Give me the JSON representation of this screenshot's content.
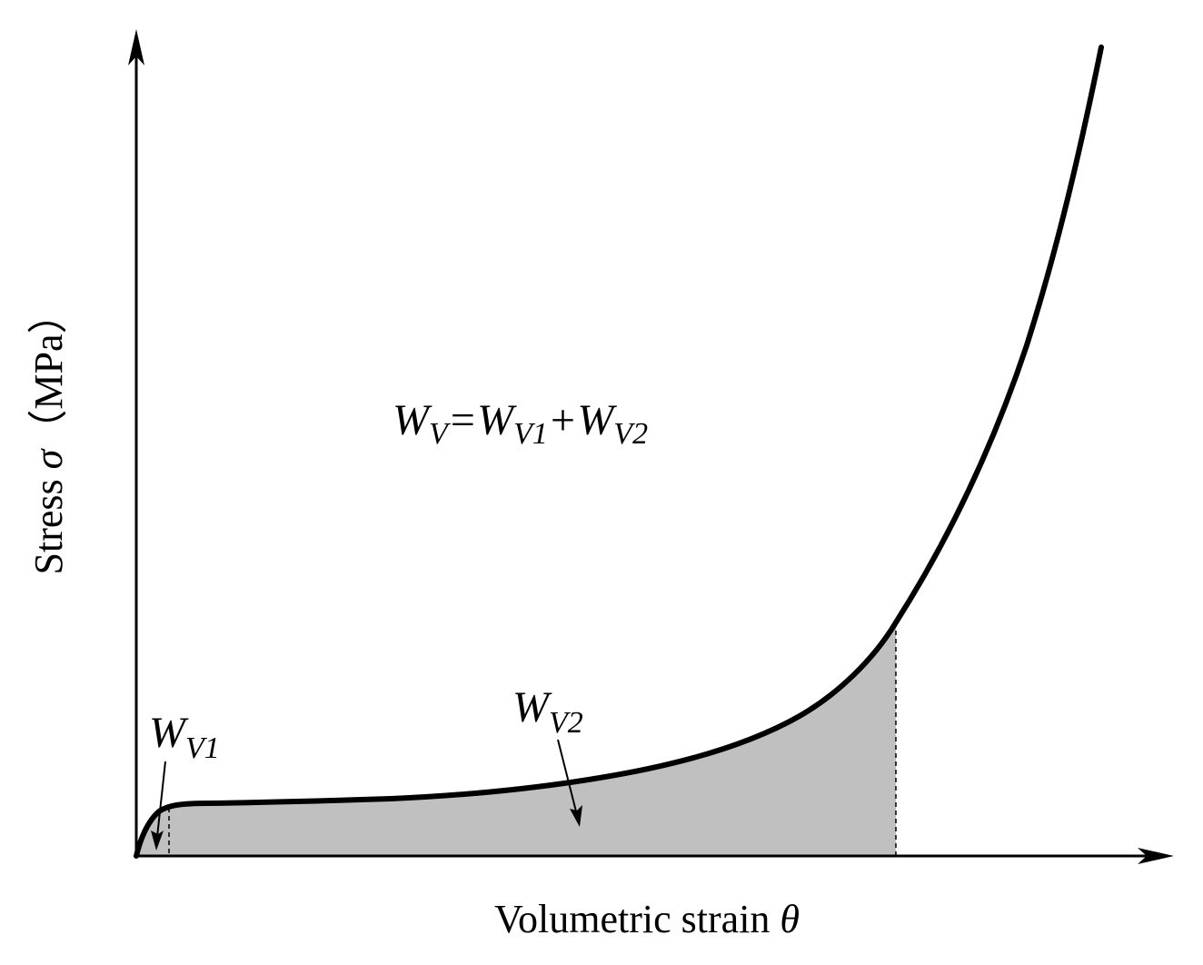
{
  "axes": {
    "x_title": "Volumetric strain",
    "x_symbol": "θ",
    "y_title": "Stress",
    "y_symbol": "σ",
    "y_unit": "（MPa）"
  },
  "labels": {
    "equation": {
      "w1": "W",
      "s1": "V",
      "eq": "=",
      "w2": "W",
      "s2": "V1",
      "plus": "+",
      "w3": "W",
      "s3": "V2"
    },
    "wv1": {
      "main": "W",
      "sub": "V1"
    },
    "wv2": {
      "main": "W",
      "sub": "V2"
    }
  },
  "colors": {
    "curve": "#000000",
    "shaded_area": "#c0c0c0",
    "axes": "#000000"
  }
}
